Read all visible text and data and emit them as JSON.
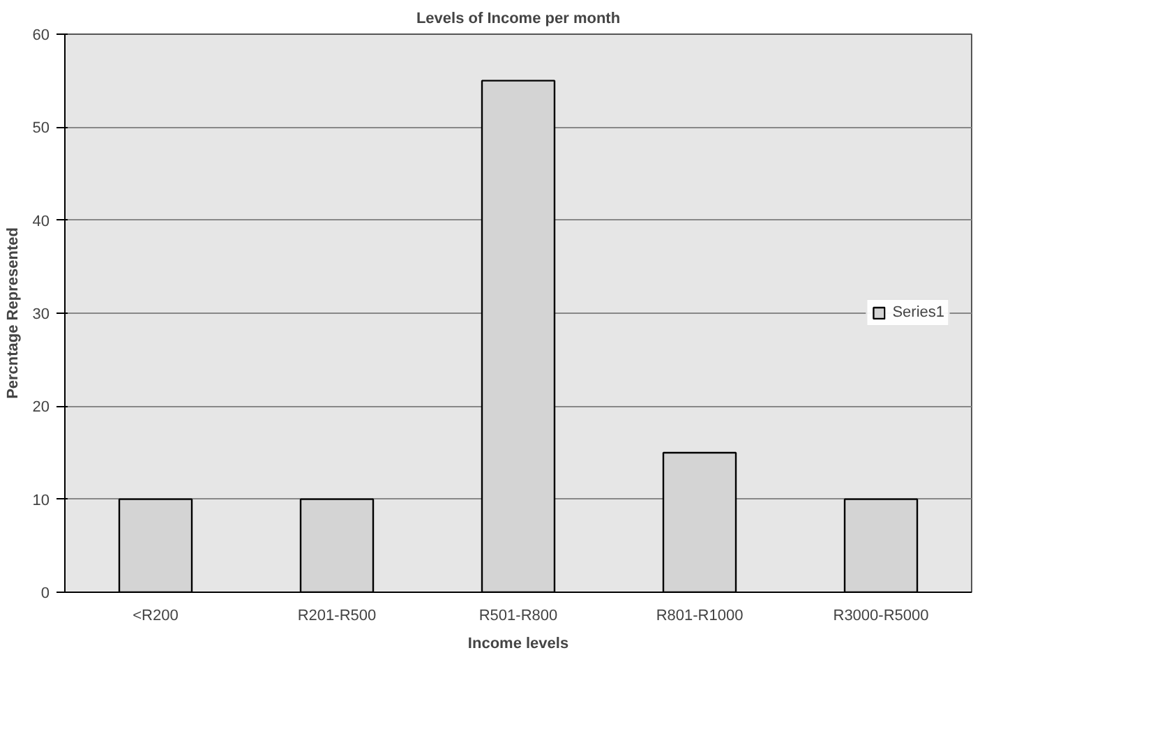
{
  "chart_data": {
    "type": "bar",
    "title": "Levels of Income per month",
    "xlabel": "Income levels",
    "ylabel": "Percntage Represented",
    "categories": [
      "<R200",
      "R201-R500",
      "R501-R800",
      "R801-R1000",
      "R3000-R5000"
    ],
    "series": [
      {
        "name": "Series1",
        "color": "#d4d4d4",
        "values": [
          10,
          10,
          55,
          15,
          10
        ]
      }
    ],
    "ylim": [
      0,
      60
    ],
    "yticks": [
      0,
      10,
      20,
      30,
      40,
      50,
      60
    ],
    "grid": "y",
    "legend": "right"
  }
}
